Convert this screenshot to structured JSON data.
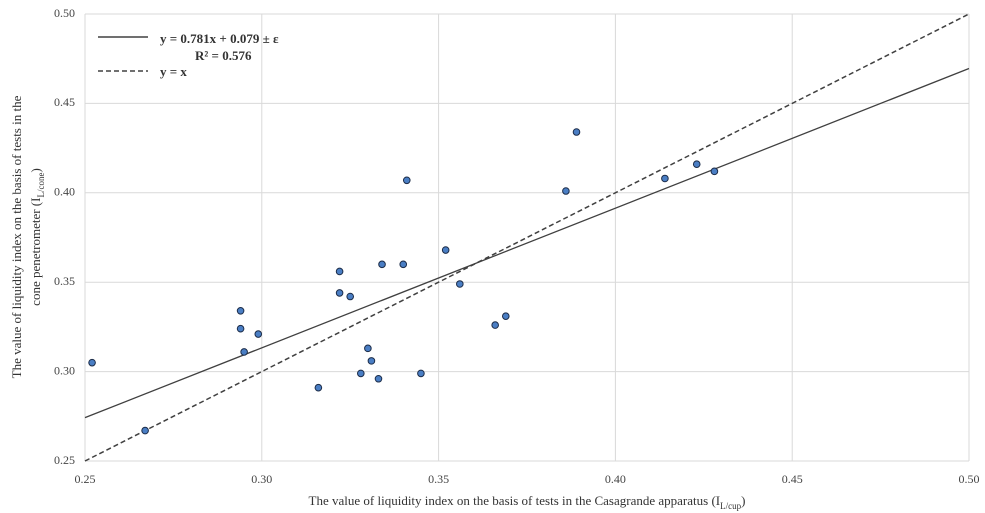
{
  "chart_data": {
    "type": "scatter",
    "x_label": {
      "text": "The value of liquidity index on the basis of tests in the Casagrande apparatus (I",
      "sub": "L/cup",
      "end": ")"
    },
    "y_label": {
      "line1": "The value of liquidity index on the basis of tests in the",
      "text": "cone penetrometer (I",
      "sub": "L/cone",
      "end": ")"
    },
    "x": [
      0.252,
      0.267,
      0.294,
      0.294,
      0.295,
      0.299,
      0.316,
      0.322,
      0.322,
      0.325,
      0.33,
      0.331,
      0.328,
      0.333,
      0.334,
      0.34,
      0.341,
      0.345,
      0.352,
      0.356,
      0.366,
      0.369,
      0.386,
      0.389,
      0.414,
      0.423,
      0.428
    ],
    "values": [
      0.305,
      0.267,
      0.334,
      0.324,
      0.311,
      0.321,
      0.291,
      0.356,
      0.344,
      0.342,
      0.313,
      0.306,
      0.299,
      0.296,
      0.36,
      0.36,
      0.407,
      0.299,
      0.368,
      0.349,
      0.326,
      0.331,
      0.401,
      0.434,
      0.408,
      0.416,
      0.412
    ],
    "color": "#4a7ec4",
    "trendline": {
      "label": "y = 0.781x + 0.079 ± ε",
      "r2_label": "R² = 0.576",
      "slope": 0.781,
      "intercept": 0.079,
      "color": "#404040"
    },
    "reference_line": {
      "label": "y = x",
      "color": "#404040"
    },
    "xlim": [
      0.25,
      0.5
    ],
    "xticks": [
      0.25,
      {
        "value": 0.3,
        "label": "0.30"
      },
      0.35,
      {
        "value": 0.4,
        "label": "0.40"
      },
      0.45,
      {
        "value": 0.5,
        "label": "0.50"
      }
    ],
    "ylim": [
      0.25,
      0.5
    ],
    "yticks": [
      0.25,
      {
        "value": 0.3,
        "label": "0.30"
      },
      0.35,
      {
        "value": 0.4,
        "label": "0.40"
      },
      0.45,
      {
        "value": 0.5,
        "label": "0.50"
      }
    ],
    "grid": true
  }
}
